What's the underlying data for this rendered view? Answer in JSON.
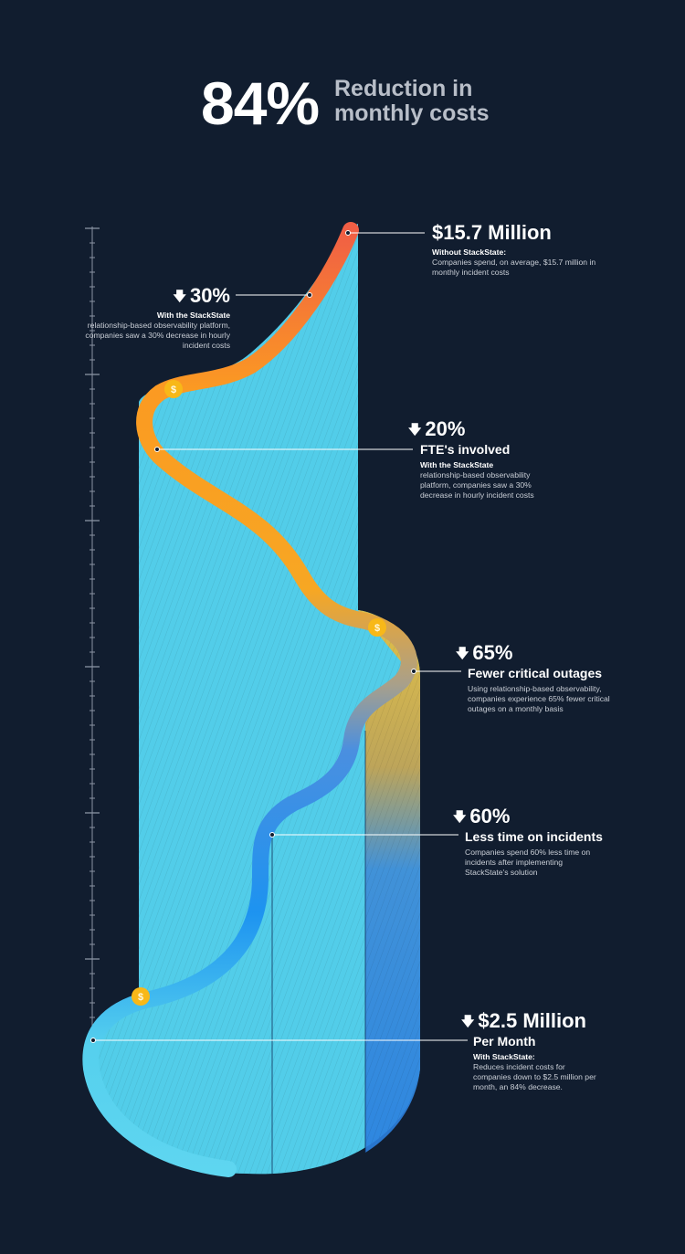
{
  "header": {
    "big_percent": "84%",
    "subtitle_line1": "Reduction in",
    "subtitle_line2": "monthly costs"
  },
  "annotations": {
    "a1": {
      "value": "$15.7 Million",
      "desc_bold": "Without StackState:",
      "desc": "Companies spend, on average, $15.7 million in monthly incident costs"
    },
    "a2": {
      "value": "30%",
      "desc_bold": "With the StackState",
      "desc": "relationship-based observability platform, companies saw a 30% decrease in hourly incident costs"
    },
    "a3": {
      "value": "20%",
      "label": "FTE's involved",
      "desc_bold": "With the StackState",
      "desc": "relationship-based observability platform, companies saw a 30% decrease in hourly incident costs"
    },
    "a4": {
      "value": "65%",
      "label": "Fewer critical outages",
      "desc": "Using relationship-based observability, companies experience 65% fewer critical outages on a monthly basis"
    },
    "a5": {
      "value": "60%",
      "label": "Less time on incidents",
      "desc": "Companies spend 60% less time on incidents after implementing StackState's solution"
    },
    "a6": {
      "value": "$2.5 Million",
      "label": "Per Month",
      "desc_bold": "With StackState:",
      "desc": "Reduces incident costs for companies down to $2.5 million per month, an 84% decrease."
    }
  },
  "icons": {
    "down_arrow": "down-arrow-icon",
    "coin": "dollar-coin-icon"
  },
  "colors": {
    "background": "#111d2f",
    "red": "#e8534d",
    "orange": "#f7a325",
    "blue": "#2b8ce8",
    "cyan": "#5fd3ef",
    "coin": "#f8b818"
  }
}
